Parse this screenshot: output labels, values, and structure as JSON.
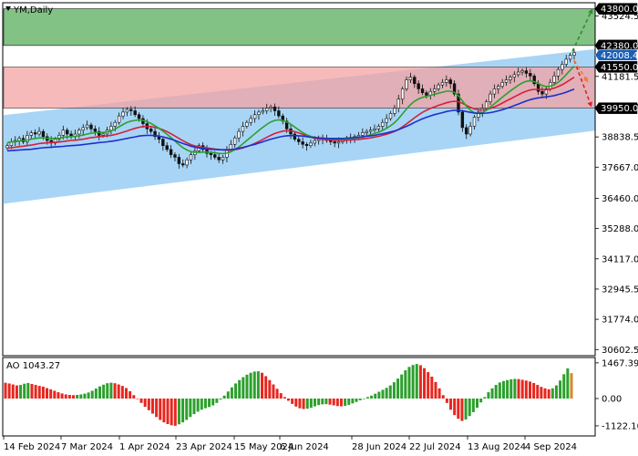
{
  "chart_data": [
    {
      "type": "candlestick",
      "title": "YM,Daily",
      "x_labels": [
        "14 Feb 2024",
        "7 Mar 2024",
        "1 Apr 2024",
        "23 Apr 2024",
        "15 May 2024",
        "6 Jun 2024",
        "28 Jun 2024",
        "22 Jul 2024",
        "13 Aug 2024",
        "4 Sep 2024"
      ],
      "y_ticks": [
        43524.5,
        42353.0,
        41181.5,
        40010.0,
        38838.5,
        37667.0,
        36460.0,
        35288.0,
        34117.0,
        32945.5,
        31774.0,
        30602.5
      ],
      "ylim": [
        30400,
        44000
      ],
      "zones": [
        {
          "name": "target",
          "from": 42380.0,
          "to": 43800.0,
          "color": "#7cbf7e"
        },
        {
          "name": "resistance",
          "from": 39950.0,
          "to": 41550.0,
          "color": "#f4a3a3"
        }
      ],
      "level_tags": [
        {
          "value": "43800.0",
          "y": 43800.0,
          "style": "black"
        },
        {
          "value": "42380.0",
          "y": 42380.0,
          "style": "black"
        },
        {
          "value": "42008.4",
          "y": 42008.4,
          "style": "price"
        },
        {
          "value": "41550.0",
          "y": 41550.0,
          "style": "black"
        },
        {
          "value": "39950.0",
          "y": 39950.0,
          "style": "black"
        }
      ],
      "channel": {
        "color": "#9fd0f5",
        "upper_start": 39680,
        "upper_end": 42240,
        "lower_start": 36250,
        "lower_end": 39080
      },
      "close": [
        38500,
        38650,
        38700,
        38780,
        38650,
        38900,
        39000,
        38950,
        39050,
        38850,
        38700,
        38600,
        38750,
        38900,
        39100,
        38950,
        38850,
        38950,
        39100,
        39200,
        39300,
        39150,
        39050,
        38900,
        38950,
        39100,
        39250,
        39400,
        39650,
        39800,
        39900,
        39850,
        39700,
        39550,
        39350,
        39150,
        39050,
        38850,
        38750,
        38500,
        38350,
        38150,
        38050,
        37800,
        37750,
        37950,
        38150,
        38300,
        38500,
        38350,
        38200,
        38150,
        38050,
        37950,
        38050,
        38350,
        38550,
        38800,
        39050,
        39250,
        39400,
        39550,
        39700,
        39800,
        39850,
        39950,
        40000,
        39850,
        39650,
        39450,
        39150,
        38950,
        38750,
        38650,
        38550,
        38500,
        38600,
        38700,
        38800,
        38750,
        38700,
        38650,
        38600,
        38650,
        38700,
        38750,
        38800,
        38850,
        38900,
        39000,
        39050,
        39100,
        39150,
        39250,
        39400,
        39550,
        39750,
        39950,
        40300,
        40700,
        41050,
        41150,
        40900,
        40700,
        40550,
        40450,
        40600,
        40700,
        40850,
        40950,
        41050,
        40900,
        40500,
        39800,
        39200,
        38950,
        39250,
        39600,
        39800,
        39950,
        40200,
        40500,
        40700,
        40800,
        40950,
        41050,
        41150,
        41250,
        41350,
        41400,
        41300,
        41200,
        40900,
        40600,
        40500,
        40700,
        40950,
        41200,
        41450,
        41650,
        41850,
        42000,
        42100
      ],
      "ma_green": [
        38620,
        38640,
        38660,
        38680,
        38700,
        38720,
        38750,
        38780,
        38800,
        38800,
        38790,
        38780,
        38780,
        38790,
        38820,
        38840,
        38850,
        38860,
        38880,
        38910,
        38950,
        38980,
        39000,
        39010,
        39010,
        39030,
        39070,
        39140,
        39230,
        39320,
        39400,
        39450,
        39480,
        39500,
        39480,
        39430,
        39360,
        39270,
        39170,
        39060,
        38940,
        38810,
        38680,
        38540,
        38420,
        38330,
        38270,
        38240,
        38240,
        38250,
        38250,
        38240,
        38220,
        38200,
        38190,
        38210,
        38260,
        38340,
        38450,
        38570,
        38700,
        38830,
        38960,
        39090,
        39210,
        39320,
        39420,
        39480,
        39500,
        39480,
        39420,
        39330,
        39220,
        39110,
        39010,
        38920,
        38860,
        38820,
        38800,
        38790,
        38780,
        38770,
        38760,
        38750,
        38750,
        38760,
        38770,
        38790,
        38810,
        38840,
        38880,
        38920,
        38970,
        39020,
        39090,
        39170,
        39270,
        39390,
        39550,
        39730,
        39920,
        40090,
        40220,
        40310,
        40370,
        40410,
        40450,
        40490,
        40530,
        40570,
        40610,
        40610,
        40560,
        40430,
        40230,
        40030,
        39870,
        39780,
        39760,
        39790,
        39870,
        39990,
        40120,
        40250,
        40380,
        40500,
        40620,
        40730,
        40840,
        40930,
        40990,
        41010,
        40980,
        40910,
        40830,
        40790,
        40800,
        40860,
        40960,
        41090,
        41250,
        41420,
        41580
      ],
      "ma_red": [
        38400,
        38420,
        38440,
        38460,
        38480,
        38500,
        38520,
        38550,
        38580,
        38600,
        38610,
        38620,
        38630,
        38640,
        38660,
        38680,
        38700,
        38710,
        38730,
        38750,
        38780,
        38810,
        38830,
        38850,
        38860,
        38880,
        38900,
        38930,
        38970,
        39020,
        39070,
        39120,
        39170,
        39210,
        39240,
        39250,
        39240,
        39210,
        39170,
        39110,
        39040,
        38960,
        38870,
        38780,
        38690,
        38610,
        38540,
        38490,
        38450,
        38430,
        38410,
        38390,
        38370,
        38350,
        38330,
        38320,
        38320,
        38340,
        38370,
        38410,
        38460,
        38520,
        38590,
        38660,
        38740,
        38820,
        38900,
        38970,
        39020,
        39060,
        39080,
        39070,
        39040,
        38990,
        38940,
        38880,
        38830,
        38790,
        38760,
        38740,
        38730,
        38720,
        38710,
        38710,
        38710,
        38710,
        38720,
        38730,
        38740,
        38760,
        38780,
        38800,
        38830,
        38860,
        38900,
        38940,
        38990,
        39050,
        39130,
        39230,
        39340,
        39460,
        39580,
        39690,
        39790,
        39870,
        39940,
        40000,
        40060,
        40110,
        40160,
        40200,
        40220,
        40200,
        40140,
        40060,
        39980,
        39920,
        39890,
        39880,
        39900,
        39940,
        40000,
        40070,
        40150,
        40230,
        40310,
        40390,
        40470,
        40550,
        40610,
        40660,
        40680,
        40680,
        40670,
        40670,
        40690,
        40730,
        40790,
        40860,
        40950,
        41050,
        41150
      ],
      "ma_blue": [
        38300,
        38310,
        38320,
        38330,
        38340,
        38350,
        38360,
        38380,
        38400,
        38420,
        38430,
        38440,
        38450,
        38460,
        38470,
        38490,
        38500,
        38510,
        38520,
        38540,
        38560,
        38580,
        38600,
        38620,
        38630,
        38650,
        38670,
        38690,
        38720,
        38750,
        38780,
        38810,
        38840,
        38870,
        38890,
        38900,
        38900,
        38890,
        38870,
        38840,
        38800,
        38750,
        38700,
        38640,
        38580,
        38530,
        38480,
        38440,
        38410,
        38390,
        38370,
        38360,
        38350,
        38340,
        38340,
        38340,
        38350,
        38370,
        38400,
        38430,
        38470,
        38510,
        38550,
        38600,
        38650,
        38700,
        38750,
        38790,
        38830,
        38860,
        38880,
        38890,
        38890,
        38880,
        38870,
        38850,
        38830,
        38810,
        38800,
        38790,
        38780,
        38780,
        38780,
        38780,
        38780,
        38790,
        38800,
        38810,
        38820,
        38840,
        38860,
        38880,
        38900,
        38930,
        38960,
        38990,
        39030,
        39070,
        39120,
        39180,
        39250,
        39320,
        39400,
        39470,
        39540,
        39600,
        39650,
        39700,
        39740,
        39780,
        39820,
        39850,
        39870,
        39870,
        39850,
        39820,
        39790,
        39760,
        39750,
        39750,
        39760,
        39780,
        39810,
        39850,
        39890,
        39940,
        39990,
        40050,
        40110,
        40170,
        40230,
        40280,
        40320,
        40350,
        40370,
        40390,
        40410,
        40440,
        40480,
        40520,
        40570,
        40630,
        40690
      ],
      "price_arrows": {
        "up": {
          "from": 42150,
          "to": 43800,
          "color": "#2e8b2e"
        },
        "down_red": {
          "from": 41800,
          "to": 40000,
          "color": "#e02020"
        },
        "down_orange": {
          "from": 41800,
          "to": 40950,
          "color": "#f07a2a"
        }
      }
    },
    {
      "type": "bar",
      "title": "AO 1043.27",
      "y_ticks": [
        1467.39,
        0.0,
        -1122.1
      ],
      "ylim": [
        -1500,
        1650
      ],
      "colors": {
        "up": "#2ca02c",
        "down": "#e8261e",
        "last": "#d08a2a"
      },
      "values": [
        650,
        620,
        580,
        540,
        560,
        610,
        640,
        600,
        560,
        520,
        490,
        430,
        380,
        320,
        260,
        210,
        170,
        150,
        140,
        150,
        170,
        200,
        250,
        320,
        410,
        500,
        570,
        630,
        650,
        630,
        580,
        520,
        430,
        300,
        140,
        -20,
        -180,
        -340,
        -480,
        -620,
        -760,
        -880,
        -980,
        -1050,
        -1100,
        -1120,
        -1060,
        -980,
        -880,
        -760,
        -640,
        -540,
        -460,
        -400,
        -350,
        -280,
        -180,
        -40,
        120,
        290,
        460,
        620,
        760,
        880,
        980,
        1060,
        1110,
        1120,
        1060,
        920,
        760,
        580,
        400,
        220,
        60,
        -90,
        -220,
        -330,
        -400,
        -430,
        -420,
        -380,
        -320,
        -270,
        -240,
        -230,
        -250,
        -280,
        -310,
        -320,
        -300,
        -260,
        -200,
        -140,
        -70,
        0,
        60,
        120,
        200,
        280,
        360,
        440,
        540,
        670,
        820,
        990,
        1160,
        1300,
        1380,
        1420,
        1370,
        1250,
        1090,
        900,
        680,
        420,
        140,
        -180,
        -460,
        -680,
        -830,
        -920,
        -860,
        -720,
        -560,
        -380,
        -160,
        60,
        260,
        420,
        560,
        660,
        720,
        760,
        790,
        810,
        800,
        770,
        740,
        700,
        640,
        560,
        480,
        420,
        380,
        420,
        540,
        740,
        1000,
        1240,
        1043.27
      ]
    }
  ]
}
